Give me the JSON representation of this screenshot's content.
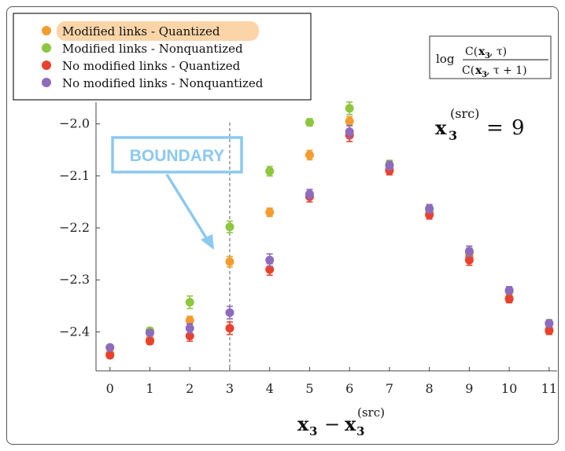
{
  "chart_data": {
    "type": "scatter",
    "x": [
      0,
      1,
      2,
      3,
      4,
      5,
      6,
      7,
      8,
      9,
      10,
      11
    ],
    "xlim": [
      -0.35,
      11.2
    ],
    "ylim": [
      -2.475,
      -1.94
    ],
    "xticks": [
      "0",
      "1",
      "2",
      "3",
      "4",
      "5",
      "6",
      "7",
      "8",
      "9",
      "10",
      "11"
    ],
    "yticks": [
      {
        "value": -2.0,
        "label": "−2.0"
      },
      {
        "value": -2.1,
        "label": "−2.1"
      },
      {
        "value": -2.2,
        "label": "−2.2"
      },
      {
        "value": -2.3,
        "label": "−2.3"
      },
      {
        "value": -2.4,
        "label": "−2.4"
      }
    ],
    "xlabel": "x3 − x3(src)",
    "series": [
      {
        "name": "Modified links - Quantized",
        "color": "#f39c2e",
        "points": [
          {
            "x": 0,
            "y": -2.442,
            "err": 0.005
          },
          {
            "x": 1,
            "y": -2.415,
            "err": 0.006
          },
          {
            "x": 2,
            "y": -2.378,
            "err": 0.008
          },
          {
            "x": 3,
            "y": -2.265,
            "err": 0.01
          },
          {
            "x": 4,
            "y": -2.17,
            "err": 0.008
          },
          {
            "x": 5,
            "y": -2.06,
            "err": 0.009
          },
          {
            "x": 6,
            "y": -1.995,
            "err": 0.009
          },
          {
            "x": 7,
            "y": -2.088,
            "err": 0.007
          },
          {
            "x": 8,
            "y": -2.172,
            "err": 0.007
          },
          {
            "x": 9,
            "y": -2.255,
            "err": 0.009
          },
          {
            "x": 10,
            "y": -2.335,
            "err": 0.006
          },
          {
            "x": 11,
            "y": -2.395,
            "err": 0.006
          }
        ]
      },
      {
        "name": "Modified links - Nonquantized",
        "color": "#8dc63f",
        "points": [
          {
            "x": 0,
            "y": -2.43,
            "err": 0.005
          },
          {
            "x": 1,
            "y": -2.398,
            "err": 0.006
          },
          {
            "x": 2,
            "y": -2.343,
            "err": 0.012
          },
          {
            "x": 3,
            "y": -2.198,
            "err": 0.011
          },
          {
            "x": 4,
            "y": -2.091,
            "err": 0.009
          },
          {
            "x": 5,
            "y": -1.997,
            "err": 0.007
          },
          {
            "x": 6,
            "y": -1.97,
            "err": 0.012
          },
          {
            "x": 7,
            "y": -2.078,
            "err": 0.008
          },
          {
            "x": 8,
            "y": -2.165,
            "err": 0.008
          },
          {
            "x": 9,
            "y": -2.248,
            "err": 0.01
          },
          {
            "x": 10,
            "y": -2.322,
            "err": 0.007
          },
          {
            "x": 11,
            "y": -2.383,
            "err": 0.006
          }
        ]
      },
      {
        "name": "No modified links - Quantized",
        "color": "#e8412e",
        "points": [
          {
            "x": 0,
            "y": -2.445,
            "err": 0.005
          },
          {
            "x": 1,
            "y": -2.418,
            "err": 0.006
          },
          {
            "x": 2,
            "y": -2.408,
            "err": 0.01
          },
          {
            "x": 3,
            "y": -2.393,
            "err": 0.012
          },
          {
            "x": 4,
            "y": -2.28,
            "err": 0.011
          },
          {
            "x": 5,
            "y": -2.14,
            "err": 0.01
          },
          {
            "x": 6,
            "y": -2.022,
            "err": 0.012
          },
          {
            "x": 7,
            "y": -2.09,
            "err": 0.008
          },
          {
            "x": 8,
            "y": -2.175,
            "err": 0.008
          },
          {
            "x": 9,
            "y": -2.262,
            "err": 0.01
          },
          {
            "x": 10,
            "y": -2.337,
            "err": 0.007
          },
          {
            "x": 11,
            "y": -2.398,
            "err": 0.007
          }
        ]
      },
      {
        "name": "No modified links - Nonquantized",
        "color": "#8e6bbf",
        "points": [
          {
            "x": 0,
            "y": -2.43,
            "err": 0.005
          },
          {
            "x": 1,
            "y": -2.402,
            "err": 0.006
          },
          {
            "x": 2,
            "y": -2.393,
            "err": 0.009
          },
          {
            "x": 3,
            "y": -2.363,
            "err": 0.012
          },
          {
            "x": 4,
            "y": -2.262,
            "err": 0.012
          },
          {
            "x": 5,
            "y": -2.135,
            "err": 0.009
          },
          {
            "x": 6,
            "y": -2.015,
            "err": 0.012
          },
          {
            "x": 7,
            "y": -2.08,
            "err": 0.008
          },
          {
            "x": 8,
            "y": -2.163,
            "err": 0.008
          },
          {
            "x": 9,
            "y": -2.245,
            "err": 0.01
          },
          {
            "x": 10,
            "y": -2.32,
            "err": 0.007
          },
          {
            "x": 11,
            "y": -2.384,
            "err": 0.007
          }
        ]
      }
    ],
    "boundary": {
      "x": 3,
      "label": "BOUNDARY",
      "color": "#8cc8f0"
    },
    "highlighted_series": "Modified links - Quantized",
    "highlight_color": "#fbd5a8",
    "grid": false,
    "legend_placement": "top-left",
    "annotations": {
      "formula": "log C(x3, τ) / C(x3, τ + 1)",
      "source_label": "x3(src) = 9"
    }
  }
}
